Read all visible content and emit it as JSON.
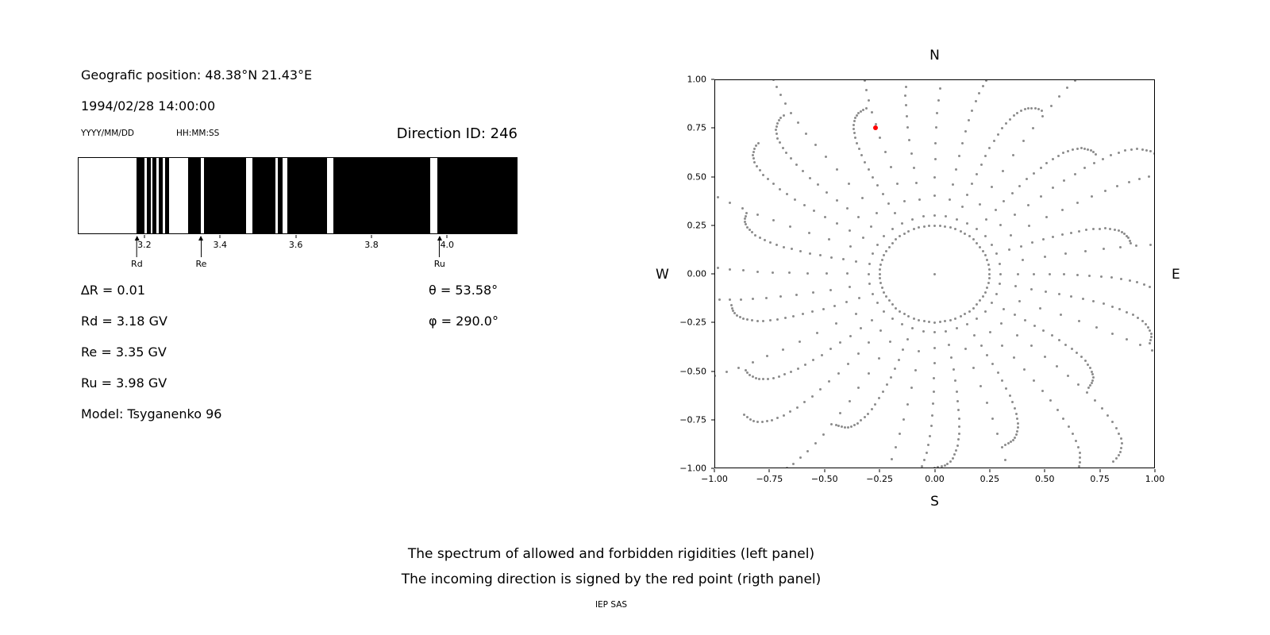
{
  "info_panel": {
    "position_label": "Geografic position: 48.38°N 21.43°E",
    "datetime": "1994/02/28 14:00:00",
    "date_format_hint": "YYYY/MM/DD",
    "time_format_hint": "HH:MM:SS",
    "direction_id_label": "Direction ID: 246",
    "delta_r": "∆R = 0.01",
    "theta": "θ = 53.58°",
    "rd": "Rd = 3.18 GV",
    "phi": "φ = 290.0°",
    "re": "Re = 3.35 GV",
    "ru": "Ru = 3.98 GV",
    "model": "Model: Tsyganenko 96"
  },
  "caption": {
    "line1": "The spectrum of allowed and forbidden rigidities (left panel)",
    "line2": "The incoming direction is signed by the red point (rigth panel)",
    "credit": "IEP SAS"
  },
  "chart_data": [
    {
      "type": "bar",
      "name": "rigidity-spectrum",
      "description": "Barcode spectrum of cosmic-ray rigidities: black bands = allowed trajectories, white bands = forbidden; penumbra between Rd and Ru",
      "x_range": [
        3.024,
        4.186
      ],
      "x_unit": "GV",
      "x_ticks": [
        {
          "v": 3.2,
          "label": "3.2"
        },
        {
          "v": 3.4,
          "label": "3.4"
        },
        {
          "v": 3.6,
          "label": "3.6"
        },
        {
          "v": 3.8,
          "label": "3.8"
        },
        {
          "v": 4.0,
          "label": "4.0"
        }
      ],
      "black_segments": [
        [
          3.177,
          3.198
        ],
        [
          3.206,
          3.216
        ],
        [
          3.22,
          3.23
        ],
        [
          3.236,
          3.247
        ],
        [
          3.253,
          3.263
        ],
        [
          3.315,
          3.348
        ],
        [
          3.357,
          3.468
        ],
        [
          3.484,
          3.546
        ],
        [
          3.553,
          3.566
        ],
        [
          3.578,
          3.683
        ],
        [
          3.699,
          3.956
        ],
        [
          3.976,
          4.186
        ]
      ],
      "markers": [
        {
          "label": "Rd",
          "value": 3.18
        },
        {
          "label": "Re",
          "value": 3.35
        },
        {
          "label": "Ru",
          "value": 3.98
        }
      ],
      "colors": {
        "allowed": "#000000",
        "forbidden": "#ffffff"
      }
    },
    {
      "type": "scatter",
      "name": "incoming-direction-map",
      "description": "Sky map of directions (gray dotted radial spokes); red point marks the incoming direction",
      "compass": {
        "top": "N",
        "bottom": "S",
        "left": "W",
        "right": "E"
      },
      "x_range": [
        -1.0,
        1.0
      ],
      "y_range": [
        -1.0,
        1.0
      ],
      "x_ticks": [
        {
          "v": -1.0,
          "label": "−1.00"
        },
        {
          "v": -0.75,
          "label": "−0.75"
        },
        {
          "v": -0.5,
          "label": "−0.50"
        },
        {
          "v": -0.25,
          "label": "−0.25"
        },
        {
          "v": 0.0,
          "label": "0.00"
        },
        {
          "v": 0.25,
          "label": "0.25"
        },
        {
          "v": 0.5,
          "label": "0.50"
        },
        {
          "v": 0.75,
          "label": "0.75"
        },
        {
          "v": 1.0,
          "label": "1.00"
        }
      ],
      "y_ticks": [
        {
          "v": 1.0,
          "label": "1.00"
        },
        {
          "v": 0.75,
          "label": "0.75"
        },
        {
          "v": 0.5,
          "label": "0.50"
        },
        {
          "v": 0.25,
          "label": "0.25"
        },
        {
          "v": 0.0,
          "label": "0.00"
        },
        {
          "v": -0.25,
          "label": "−0.25"
        },
        {
          "v": -0.5,
          "label": "−0.50"
        },
        {
          "v": -0.75,
          "label": "−0.75"
        },
        {
          "v": -1.0,
          "label": "−1.00"
        }
      ],
      "dot_color": "#8c8c8c",
      "red_point": {
        "x": -0.27,
        "y": 0.755,
        "color": "#ff0000"
      },
      "pattern": {
        "type": "radial-spokes",
        "spoke_count": 36,
        "dots_per_spoke": 22,
        "r_start": 0.3,
        "r_end_base": 1.15,
        "r_end_var": 0.25,
        "swirl_deg": 10,
        "density_power": 2.2,
        "inner_ring": {
          "radius": 0.25,
          "count": 64
        },
        "center_dot": true
      }
    }
  ]
}
